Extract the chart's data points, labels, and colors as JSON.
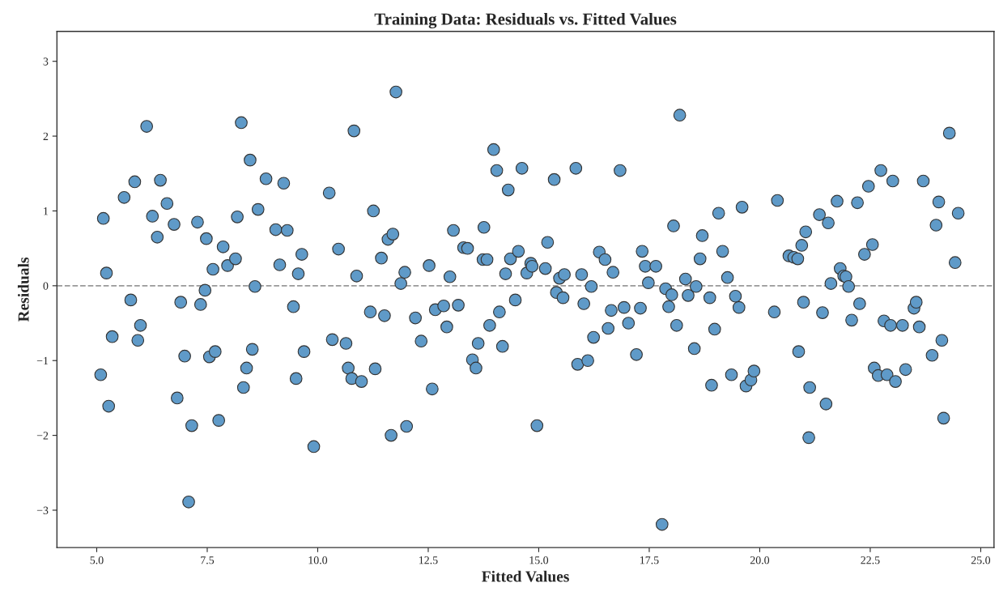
{
  "chart_data": {
    "type": "scatter",
    "title": "Training Data: Residuals vs. Fitted Values",
    "xlabel": "Fitted Values",
    "ylabel": "Residuals",
    "xlim": [
      4.1,
      25.3
    ],
    "ylim": [
      -3.5,
      3.4
    ],
    "xticks": [
      {
        "value": 5,
        "label": "5.0"
      },
      {
        "value": 7.5,
        "label": "7.5"
      },
      {
        "value": 10,
        "label": "10.0"
      },
      {
        "value": 12.5,
        "label": "12.5"
      },
      {
        "value": 15,
        "label": "15.0"
      },
      {
        "value": 17.5,
        "label": "17.5"
      },
      {
        "value": 20,
        "label": "20.0"
      },
      {
        "value": 22.5,
        "label": "22.5"
      },
      {
        "value": 25,
        "label": "25.0"
      }
    ],
    "yticks": [
      {
        "value": -3,
        "label": "−3"
      },
      {
        "value": -2,
        "label": "−2"
      },
      {
        "value": -1,
        "label": "−1"
      },
      0,
      1,
      2,
      3
    ],
    "grid": false,
    "marker": "circle",
    "ref_lines": [
      {
        "axis": "y",
        "value": 0,
        "color": "#999999",
        "line_style": "dashed"
      }
    ],
    "series": [
      {
        "color": "#5f9ac8",
        "x": [
          5.09,
          5.15,
          5.22,
          5.27,
          5.35,
          5.62,
          5.77,
          5.86,
          5.93,
          5.99,
          6.13,
          6.26,
          6.37,
          6.44,
          6.59,
          6.75,
          6.82,
          6.9,
          6.99,
          7.08,
          7.15,
          7.28,
          7.35,
          7.45,
          7.48,
          7.55,
          7.63,
          7.68,
          7.76,
          7.86,
          7.96,
          8.18,
          8.14,
          8.27,
          8.32,
          8.39,
          8.47,
          8.52,
          8.58,
          8.65,
          8.83,
          9.05,
          9.14,
          9.23,
          9.31,
          9.45,
          9.51,
          9.56,
          9.64,
          9.69,
          9.91,
          10.26,
          10.33,
          10.47,
          10.64,
          10.69,
          10.77,
          10.82,
          10.88,
          10.99,
          11.19,
          11.26,
          11.3,
          11.44,
          11.51,
          11.59,
          11.66,
          11.7,
          11.77,
          11.88,
          11.97,
          12.01,
          12.21,
          12.34,
          12.52,
          12.59,
          12.66,
          12.85,
          12.92,
          12.99,
          13.07,
          13.18,
          13.3,
          13.39,
          13.5,
          13.58,
          13.63,
          13.74,
          13.76,
          13.83,
          13.89,
          13.98,
          14.05,
          14.11,
          14.18,
          14.25,
          14.31,
          14.36,
          14.47,
          14.54,
          14.62,
          14.73,
          14.82,
          14.85,
          14.96,
          15.15,
          15.2,
          15.35,
          15.4,
          15.47,
          15.55,
          15.58,
          15.84,
          15.88,
          15.97,
          16.02,
          16.11,
          16.19,
          16.24,
          16.37,
          16.5,
          16.57,
          16.64,
          16.68,
          16.84,
          16.93,
          17.03,
          17.21,
          17.3,
          17.34,
          17.41,
          17.48,
          17.65,
          17.79,
          17.87,
          17.94,
          18.01,
          18.05,
          18.12,
          18.19,
          18.32,
          18.38,
          18.52,
          18.56,
          18.65,
          18.7,
          18.87,
          18.91,
          18.98,
          19.07,
          19.16,
          19.27,
          19.36,
          19.45,
          19.53,
          19.6,
          19.69,
          19.8,
          19.87,
          20.33,
          20.4,
          20.66,
          20.77,
          20.86,
          20.88,
          20.95,
          20.99,
          21.04,
          21.13,
          21.11,
          21.35,
          21.42,
          21.55,
          21.5,
          21.61,
          21.75,
          21.82,
          21.9,
          21.95,
          22.01,
          22.08,
          22.21,
          22.26,
          22.37,
          22.46,
          22.55,
          22.59,
          22.68,
          22.74,
          22.81,
          22.88,
          22.96,
          23.01,
          23.07,
          23.23,
          23.3,
          23.49,
          23.54,
          23.61,
          23.7,
          23.9,
          23.99,
          24.05,
          24.12,
          24.16,
          24.29,
          24.42,
          24.49
        ],
        "values": [
          -1.19,
          0.9,
          0.17,
          -1.61,
          -0.68,
          1.18,
          -0.19,
          1.39,
          -0.73,
          -0.53,
          2.13,
          0.93,
          0.65,
          1.41,
          1.1,
          0.82,
          -1.5,
          -0.22,
          -0.94,
          -2.89,
          -1.87,
          0.85,
          -0.25,
          -0.06,
          0.63,
          -0.95,
          0.22,
          -0.88,
          -1.8,
          0.52,
          0.27,
          0.92,
          0.36,
          2.18,
          -1.36,
          -1.1,
          1.68,
          -0.85,
          -0.01,
          1.02,
          1.43,
          0.75,
          0.28,
          1.37,
          0.74,
          -0.28,
          -1.24,
          0.16,
          0.42,
          -0.88,
          -2.15,
          1.24,
          -0.72,
          0.49,
          -0.77,
          -1.1,
          -1.24,
          2.07,
          0.13,
          -1.28,
          -0.35,
          1.0,
          -1.11,
          0.37,
          -0.4,
          0.62,
          -2.0,
          0.69,
          2.59,
          0.03,
          0.18,
          -1.88,
          -0.43,
          -0.74,
          0.27,
          -1.38,
          -0.32,
          -0.27,
          -0.55,
          0.12,
          0.74,
          -0.26,
          0.51,
          0.5,
          -0.99,
          -1.1,
          -0.77,
          0.35,
          0.78,
          0.35,
          -0.53,
          1.82,
          1.54,
          -0.35,
          -0.81,
          0.16,
          1.28,
          0.36,
          -0.19,
          0.46,
          1.57,
          0.17,
          0.3,
          0.26,
          -1.87,
          0.23,
          0.58,
          1.42,
          -0.09,
          0.1,
          -0.16,
          0.15,
          1.57,
          -1.05,
          0.15,
          -0.24,
          -1.0,
          -0.01,
          -0.69,
          0.45,
          0.35,
          -0.57,
          -0.33,
          0.18,
          1.54,
          -0.29,
          -0.5,
          -0.92,
          -0.3,
          0.46,
          0.26,
          0.04,
          0.26,
          -3.19,
          -0.04,
          -0.28,
          -0.12,
          0.8,
          -0.53,
          2.28,
          0.09,
          -0.13,
          -0.84,
          -0.01,
          0.36,
          0.67,
          -0.16,
          -1.33,
          -0.58,
          0.97,
          0.46,
          0.11,
          -1.19,
          -0.14,
          -0.29,
          1.05,
          -1.34,
          -1.26,
          -1.14,
          -0.35,
          1.14,
          0.4,
          0.38,
          0.36,
          -0.88,
          0.54,
          -0.22,
          0.72,
          -1.36,
          -2.03,
          0.95,
          -0.36,
          0.84,
          -1.58,
          0.03,
          1.13,
          0.23,
          0.13,
          0.12,
          -0.01,
          -0.46,
          1.11,
          -0.24,
          0.42,
          1.33,
          0.55,
          -1.1,
          -1.2,
          1.54,
          -0.47,
          -1.19,
          -0.53,
          1.4,
          -1.28,
          -0.53,
          -1.12,
          -0.3,
          -0.22,
          -0.55,
          1.4,
          -0.93,
          0.81,
          1.12,
          -0.73,
          -1.77,
          2.04,
          0.31,
          0.97
        ]
      }
    ]
  }
}
